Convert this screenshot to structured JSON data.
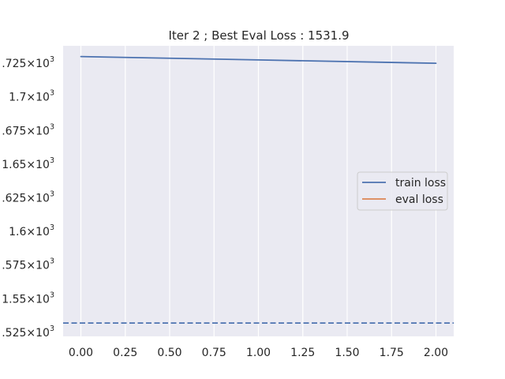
{
  "chart_data": {
    "type": "line",
    "title": "Iter 2 ; Best Eval Loss : 1531.9",
    "xlabel": "",
    "ylabel": "",
    "xlim": [
      -0.1,
      2.1
    ],
    "ylim": [
      1522,
      1738
    ],
    "grid": true,
    "legend": {
      "placement": "center-right",
      "entries": [
        "train loss",
        "eval loss"
      ]
    },
    "x_ticks": [
      {
        "value": 0.0,
        "label": "0.00"
      },
      {
        "value": 0.25,
        "label": "0.25"
      },
      {
        "value": 0.5,
        "label": "0.50"
      },
      {
        "value": 0.75,
        "label": "0.75"
      },
      {
        "value": 1.0,
        "label": "1.00"
      },
      {
        "value": 1.25,
        "label": "1.25"
      },
      {
        "value": 1.5,
        "label": "1.50"
      },
      {
        "value": 1.75,
        "label": "1.75"
      },
      {
        "value": 2.0,
        "label": "2.00"
      }
    ],
    "y_ticks": [
      {
        "value": 1525,
        "mantissa": ".525",
        "base": "10",
        "exp": "3"
      },
      {
        "value": 1550,
        "mantissa": "1.55",
        "base": "10",
        "exp": "3"
      },
      {
        "value": 1575,
        "mantissa": ".575",
        "base": "10",
        "exp": "3"
      },
      {
        "value": 1600,
        "mantissa": "1.6",
        "base": "10",
        "exp": "3"
      },
      {
        "value": 1625,
        "mantissa": ".625",
        "base": "10",
        "exp": "3"
      },
      {
        "value": 1650,
        "mantissa": "1.65",
        "base": "10",
        "exp": "3"
      },
      {
        "value": 1675,
        "mantissa": ".675",
        "base": "10",
        "exp": "3"
      },
      {
        "value": 1700,
        "mantissa": "1.7",
        "base": "10",
        "exp": "3"
      },
      {
        "value": 1725,
        "mantissa": ".725",
        "base": "10",
        "exp": "3"
      }
    ],
    "series": [
      {
        "name": "train loss",
        "color": "#4c72b0",
        "x": [
          0,
          1,
          2
        ],
        "values": [
          1730,
          1727.5,
          1725
        ]
      },
      {
        "name": "eval loss",
        "color": "#dd8452",
        "x": [],
        "values": []
      }
    ],
    "reference_line": {
      "value": 1531.9,
      "color": "#4c72b0",
      "style": "dashed"
    }
  }
}
